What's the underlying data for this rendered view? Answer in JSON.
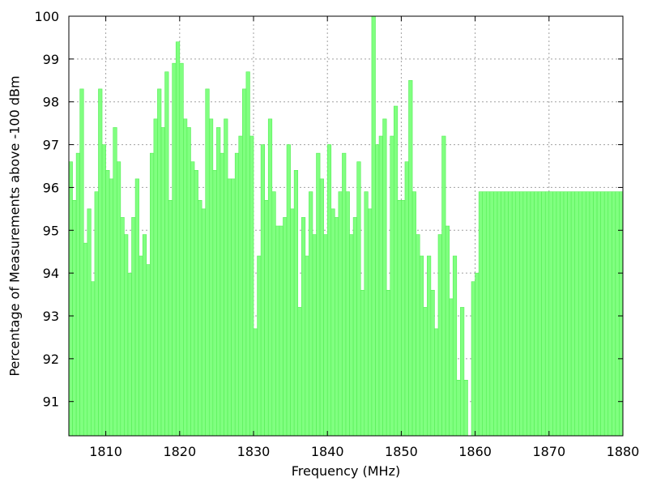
{
  "chart_data": {
    "type": "bar",
    "title": "",
    "xlabel": "Frequency (MHz)",
    "ylabel": "Percentage of Measurements above -100 dBm",
    "xlim": [
      1805,
      1880
    ],
    "ylim": [
      90.2,
      100
    ],
    "bar_width": 0.5,
    "grid": true,
    "legend": "none",
    "bar_color": "#80ff80",
    "bar_edge_color": "#55ee55",
    "x_ticks": [
      1810,
      1820,
      1830,
      1840,
      1850,
      1860,
      1870,
      1880
    ],
    "y_ticks": [
      91,
      92,
      93,
      94,
      95,
      96,
      97,
      98,
      99,
      100
    ],
    "x": [
      1805.0,
      1805.5,
      1806.0,
      1806.5,
      1807.0,
      1807.5,
      1808.0,
      1808.5,
      1809.0,
      1809.5,
      1810.0,
      1810.5,
      1811.0,
      1811.5,
      1812.0,
      1812.5,
      1813.0,
      1813.5,
      1814.0,
      1814.5,
      1815.0,
      1815.5,
      1816.0,
      1816.5,
      1817.0,
      1817.5,
      1818.0,
      1818.5,
      1819.0,
      1819.5,
      1820.0,
      1820.5,
      1821.0,
      1821.5,
      1822.0,
      1822.5,
      1823.0,
      1823.5,
      1824.0,
      1824.5,
      1825.0,
      1825.5,
      1826.0,
      1826.5,
      1827.0,
      1827.5,
      1828.0,
      1828.5,
      1829.0,
      1829.5,
      1830.0,
      1830.5,
      1831.0,
      1831.5,
      1832.0,
      1832.5,
      1833.0,
      1833.5,
      1834.0,
      1834.5,
      1835.0,
      1835.5,
      1836.0,
      1836.5,
      1837.0,
      1837.5,
      1838.0,
      1838.5,
      1839.0,
      1839.5,
      1840.0,
      1840.5,
      1841.0,
      1841.5,
      1842.0,
      1842.5,
      1843.0,
      1843.5,
      1844.0,
      1844.5,
      1845.0,
      1845.5,
      1846.0,
      1846.5,
      1847.0,
      1847.5,
      1848.0,
      1848.5,
      1849.0,
      1849.5,
      1850.0,
      1850.5,
      1851.0,
      1851.5,
      1852.0,
      1852.5,
      1853.0,
      1853.5,
      1854.0,
      1854.5,
      1855.0,
      1855.5,
      1856.0,
      1856.5,
      1857.0,
      1857.5,
      1858.0,
      1858.5,
      1859.0,
      1859.5,
      1860.0,
      1860.5,
      1861.0,
      1861.5,
      1862.0,
      1862.5,
      1863.0,
      1863.5,
      1864.0,
      1864.5,
      1865.0,
      1865.5,
      1866.0,
      1866.5,
      1867.0,
      1867.5,
      1868.0,
      1868.5,
      1869.0,
      1869.5,
      1870.0,
      1870.5,
      1871.0,
      1871.5,
      1872.0,
      1872.5,
      1873.0,
      1873.5,
      1874.0,
      1874.5,
      1875.0,
      1875.5,
      1876.0,
      1876.5,
      1877.0,
      1877.5,
      1878.0,
      1878.5,
      1879.0,
      1879.5
    ],
    "values": [
      96.6,
      95.7,
      96.8,
      98.3,
      94.7,
      95.5,
      93.8,
      95.9,
      98.3,
      97.0,
      96.4,
      96.2,
      97.4,
      96.6,
      95.3,
      94.9,
      94.0,
      95.3,
      96.2,
      94.4,
      94.9,
      94.2,
      96.8,
      97.6,
      98.3,
      97.4,
      98.7,
      95.7,
      98.9,
      99.4,
      98.9,
      97.6,
      97.4,
      96.6,
      96.4,
      95.7,
      95.5,
      98.3,
      97.6,
      96.4,
      97.4,
      96.8,
      97.6,
      96.2,
      96.2,
      96.8,
      97.2,
      98.3,
      98.7,
      97.2,
      92.7,
      94.4,
      97.0,
      95.7,
      97.6,
      95.9,
      95.1,
      95.1,
      95.3,
      97.0,
      95.5,
      96.4,
      93.2,
      95.3,
      94.4,
      95.9,
      94.9,
      96.8,
      96.2,
      94.9,
      97.0,
      95.5,
      95.3,
      95.9,
      96.8,
      95.9,
      94.9,
      95.3,
      96.6,
      93.6,
      95.9,
      95.5,
      100.0,
      97.0,
      97.2,
      97.6,
      93.6,
      97.2,
      97.9,
      95.7,
      95.7,
      96.6,
      98.5,
      95.9,
      94.9,
      94.4,
      93.2,
      94.4,
      93.6,
      92.7,
      94.9,
      97.2,
      95.1,
      93.4,
      94.4,
      91.5,
      93.2,
      91.5,
      90.2,
      93.8,
      94.0,
      95.9,
      95.9,
      95.9,
      95.9,
      95.9,
      95.9,
      95.9,
      95.9,
      95.9,
      95.9,
      95.9,
      95.9,
      95.9,
      95.9,
      95.9,
      95.9,
      95.9,
      95.9,
      95.9,
      95.9,
      95.9,
      95.9,
      95.9,
      95.9,
      95.9,
      95.9,
      95.9,
      95.9,
      95.9,
      95.9,
      95.9,
      95.9,
      95.9,
      95.9,
      95.9,
      95.9,
      95.9,
      95.9,
      95.9
    ]
  }
}
